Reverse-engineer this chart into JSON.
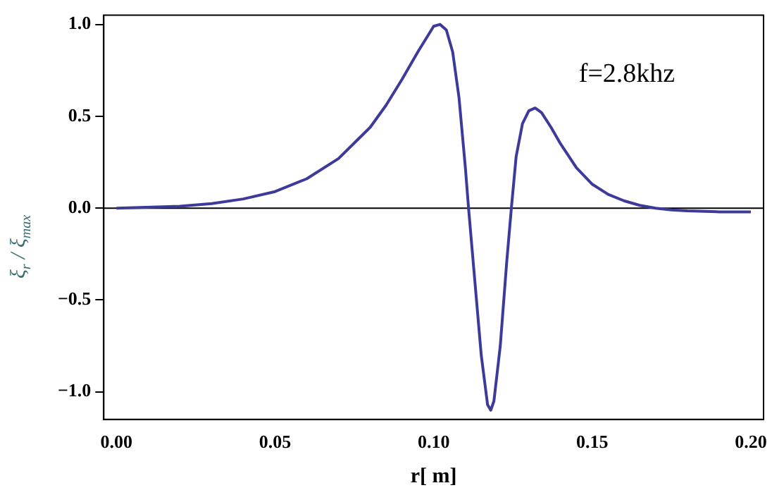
{
  "chart_data": {
    "type": "line",
    "xlabel": "r[ m]",
    "ylabel": "ξ$_{r}$ / ξ$_{max}$",
    "annotations": [
      "f=2.8khz"
    ],
    "x": [
      0,
      0.02,
      0.03,
      0.04,
      0.05,
      0.06,
      0.07,
      0.08,
      0.085,
      0.09,
      0.095,
      0.1,
      0.102,
      0.104,
      0.106,
      0.108,
      0.11,
      0.111,
      0.113,
      0.115,
      0.117,
      0.118,
      0.119,
      0.121,
      0.123,
      0.1245,
      0.126,
      0.128,
      0.13,
      0.132,
      0.134,
      0.137,
      0.14,
      0.145,
      0.15,
      0.155,
      0.16,
      0.165,
      0.17,
      0.175,
      0.18,
      0.19,
      0.2
    ],
    "series": [
      {
        "color": "#3d3a9a",
        "values": [
          0,
          0.01,
          0.025,
          0.05,
          0.09,
          0.16,
          0.27,
          0.44,
          0.56,
          0.7,
          0.85,
          0.99,
          1.0,
          0.97,
          0.85,
          0.6,
          0.22,
          0.0,
          -0.4,
          -0.8,
          -1.07,
          -1.1,
          -1.05,
          -0.75,
          -0.3,
          0,
          0.28,
          0.46,
          0.53,
          0.545,
          0.52,
          0.44,
          0.35,
          0.22,
          0.13,
          0.075,
          0.04,
          0.015,
          0.0,
          -0.01,
          -0.015,
          -0.02,
          -0.02
        ]
      }
    ],
    "xlim": [
      -0.004,
      0.204
    ],
    "ylim": [
      -1.15,
      1.05
    ],
    "xticks": [
      {
        "value": 0,
        "label": "0.00"
      },
      {
        "value": 0.05,
        "label": "0.05"
      },
      {
        "value": 0.1,
        "label": "0.10"
      },
      {
        "value": 0.15,
        "label": "0.15"
      },
      {
        "value": 0.2,
        "label": "0.20"
      }
    ],
    "yticks": [
      {
        "value": -1,
        "label": "−1.0"
      },
      {
        "value": -0.5,
        "label": "−0.5"
      },
      {
        "value": 0,
        "label": "0.0"
      },
      {
        "value": 0.5,
        "label": "0.5"
      },
      {
        "value": 1,
        "label": "1.0"
      }
    ],
    "ref_lines": [
      {
        "axis": "y",
        "value": 0,
        "color": "#000000"
      }
    ],
    "grid": false,
    "legend": false,
    "marker": "none",
    "line_style": "solid"
  }
}
